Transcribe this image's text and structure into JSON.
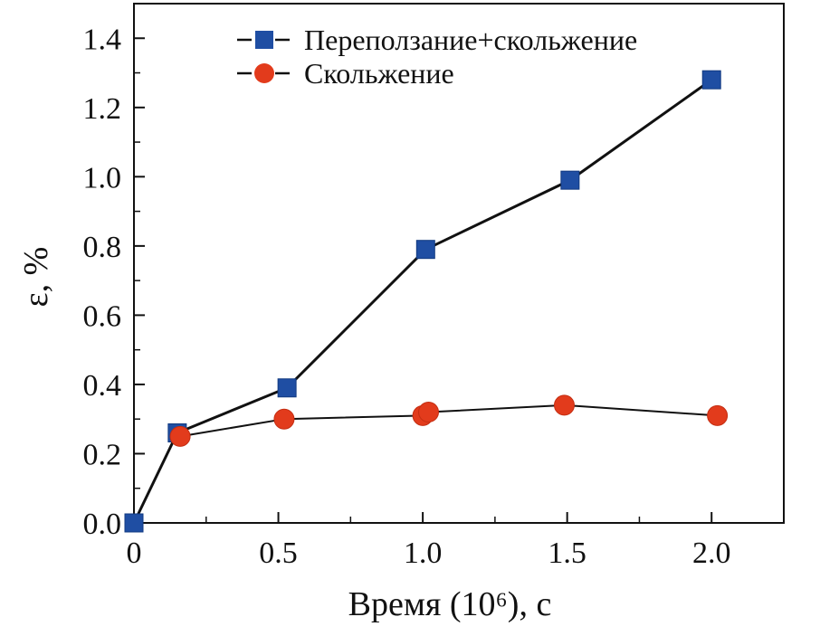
{
  "chart_data": {
    "type": "line",
    "title": "",
    "xlabel": "Время (10⁶), с",
    "ylabel": "ε, %",
    "xlim": [
      0,
      2.25
    ],
    "ylim": [
      0,
      1.5
    ],
    "x_ticks": [
      0,
      0.5,
      1.0,
      1.5,
      2.0
    ],
    "x_tick_labels": [
      "0",
      "0.5",
      "1.0",
      "1.5",
      "2.0"
    ],
    "y_ticks": [
      0,
      0.2,
      0.4,
      0.6,
      0.8,
      1.0,
      1.2,
      1.4
    ],
    "y_tick_labels": [
      "0.0",
      "0.2",
      "0.4",
      "0.6",
      "0.8",
      "1.0",
      "1.2",
      "1.4"
    ],
    "grid": false,
    "legend_position": "top-center",
    "series": [
      {
        "name": "Переползание+скольжение",
        "marker": "square",
        "marker_color": "#1f4ea3",
        "line_color": "#111111",
        "x": [
          0.0,
          0.15,
          0.53,
          1.01,
          1.51,
          2.0
        ],
        "y": [
          0.0,
          0.26,
          0.39,
          0.79,
          0.99,
          1.28
        ]
      },
      {
        "name": "Скольжение",
        "marker": "circle",
        "marker_color": "#e23b1c",
        "line_color": "#111111",
        "x": [
          0.16,
          0.52,
          1.0,
          1.02,
          1.49,
          2.02
        ],
        "y": [
          0.25,
          0.3,
          0.31,
          0.32,
          0.34,
          0.31
        ]
      }
    ]
  }
}
